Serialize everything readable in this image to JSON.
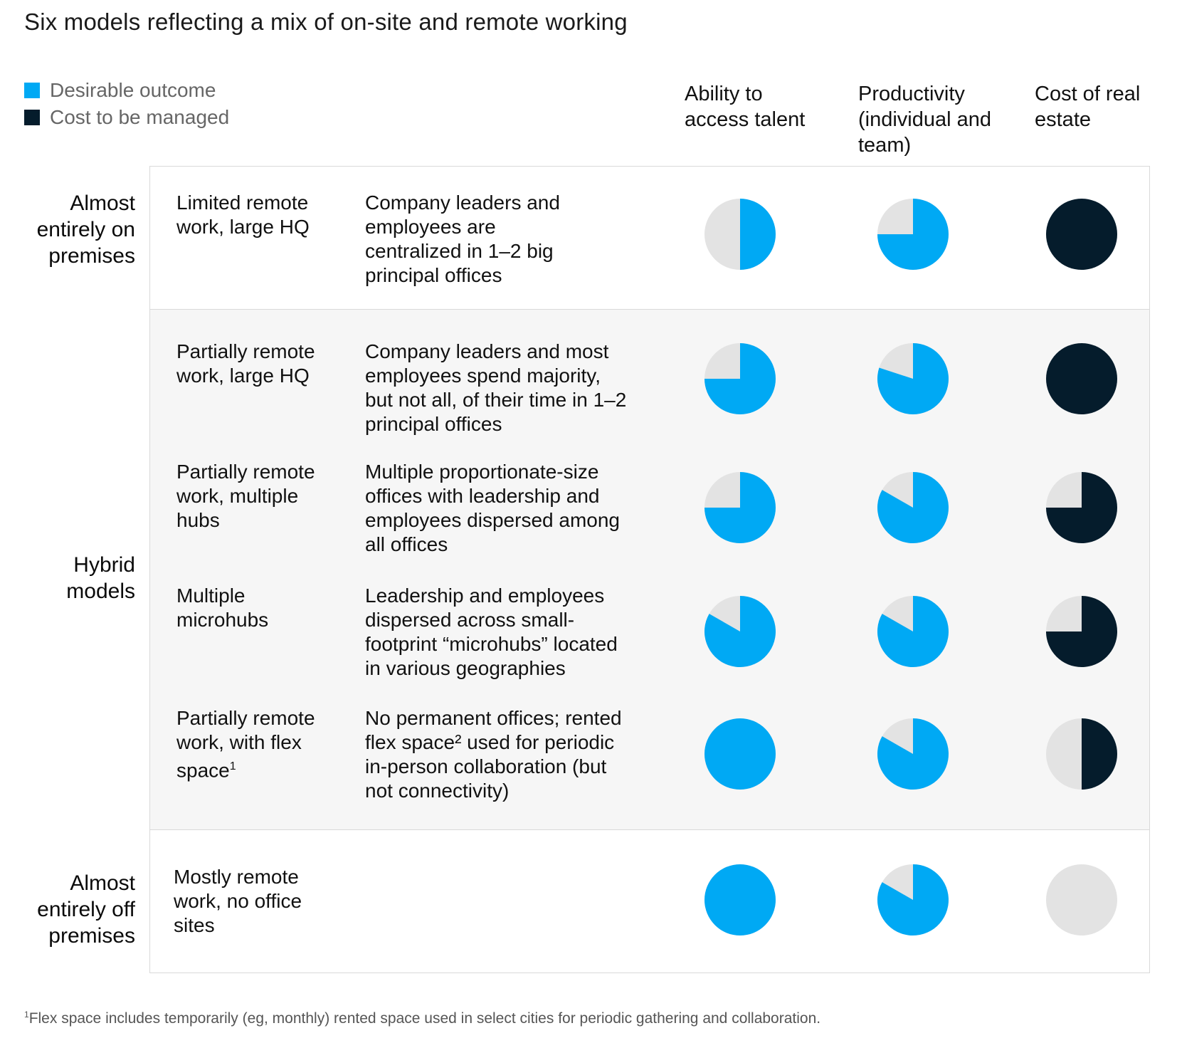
{
  "title": "Six models reflecting a mix of on-site and remote working",
  "legend": [
    {
      "label": "Desirable outcome",
      "color": "#00a9f4"
    },
    {
      "label": "Cost to be managed",
      "color": "#051c2c"
    }
  ],
  "columns": [
    "Ability to access talent",
    "Productivity (individual and team)",
    "Cost of real estate"
  ],
  "groups": [
    "Almost entirely on premises",
    "Hybrid models",
    "Almost entirely off premises"
  ],
  "models": [
    {
      "name": "Limited remote work, large HQ",
      "description": "Company leaders and employees are centralized in 1–2 big principal offices"
    },
    {
      "name": "Partially remote work, large HQ",
      "description": "Company leaders and most employees spend majority, but not all, of their time in 1–2 principal offices"
    },
    {
      "name": "Partially remote work, multiple hubs",
      "description": "Multiple proportionate-size offices with leadership and employees dispersed among all offices"
    },
    {
      "name": "Multiple microhubs",
      "description": "Leadership and employees dispersed across small-footprint “microhubs” located in various geographies"
    },
    {
      "name": "Partially remote work, with flex space",
      "name_sup": "1",
      "description": "No permanent offices; rented flex space² used for periodic in-person collaboration (but not connectivity)"
    },
    {
      "name": "Mostly remote work, no office sites",
      "description": ""
    }
  ],
  "footnote": {
    "sup": "1",
    "text": "Flex space includes temporarily (eg, monthly) rented space used in select cities for periodic gathering and collaboration."
  },
  "chart_data": {
    "type": "table",
    "columns": [
      "Ability to access talent",
      "Productivity (individual and team)",
      "Cost of real estate"
    ],
    "rows": [
      {
        "model": "Limited remote work, large HQ",
        "values": [
          0.5,
          0.75,
          1.0
        ]
      },
      {
        "model": "Partially remote work, large HQ",
        "values": [
          0.75,
          0.8,
          1.0
        ]
      },
      {
        "model": "Partially remote work, multiple hubs",
        "values": [
          0.75,
          0.833,
          0.75
        ]
      },
      {
        "model": "Multiple microhubs",
        "values": [
          0.833,
          0.833,
          0.75
        ]
      },
      {
        "model": "Partially remote work, with flex space",
        "values": [
          1.0,
          0.833,
          0.5
        ]
      },
      {
        "model": "Mostly remote work, no office sites",
        "values": [
          1.0,
          0.833,
          0.0
        ]
      }
    ],
    "column_types": [
      "Desirable outcome",
      "Desirable outcome",
      "Cost to be managed"
    ],
    "colors": {
      "desirable": "#00a9f4",
      "cost": "#051c2c",
      "empty": "#e3e3e3"
    }
  }
}
